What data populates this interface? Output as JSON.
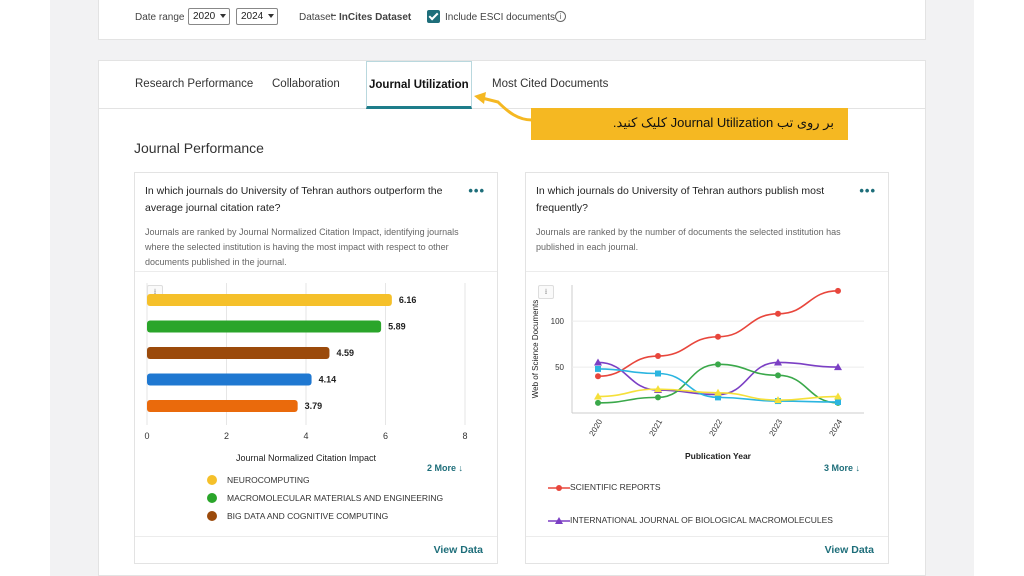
{
  "filters": {
    "date_range_label": "Date range",
    "from_year": "2020",
    "to_year": "2024",
    "dataset_label": "Dataset:",
    "dataset_value": "InCites Dataset",
    "esci_label": "Include ESCI documents"
  },
  "tabs": [
    {
      "label": "Research Performance"
    },
    {
      "label": "Collaboration"
    },
    {
      "label": "Journal Utilization"
    },
    {
      "label": "Most Cited Documents"
    }
  ],
  "callout": {
    "text": "بر روی تب Journal Utilization کلیک کنید."
  },
  "section_title": "Journal Performance",
  "left_panel": {
    "question": "In which journals do University of Tehran authors outperform the average journal citation rate?",
    "description": "Journals are ranked by Journal Normalized Citation Impact, identifying journals where the selected institution is having the most impact with respect to other documents published in the journal.",
    "more_label": "2 More ↓",
    "view_data": "View Data"
  },
  "right_panel": {
    "question": "In which journals do University of Tehran authors publish most frequently?",
    "description": "Journals are ranked by the number of documents the selected institution has published in each journal.",
    "more_label": "3 More ↓",
    "view_data": "View Data"
  },
  "chart_data": [
    {
      "type": "bar",
      "orientation": "horizontal",
      "categories": [
        "NEUROCOMPUTING",
        "MACROMOLECULAR MATERIALS AND ENGINEERING",
        "BIG DATA AND COGNITIVE COMPUTING",
        "",
        ""
      ],
      "values": [
        6.16,
        5.89,
        4.59,
        4.14,
        3.79
      ],
      "value_labels": [
        "6.16",
        "5.89",
        "4.59",
        "4.14",
        "3.79"
      ],
      "colors": [
        "#f5c02a",
        "#2aa52a",
        "#9b4a0b",
        "#1f78d1",
        "#ea6a0c"
      ],
      "xlabel": "Journal Normalized Citation Impact",
      "xlim": [
        0,
        8
      ],
      "xticks": [
        "0",
        "2",
        "4",
        "6",
        "8"
      ],
      "legend": [
        {
          "name": "NEUROCOMPUTING",
          "color": "#f5c02a"
        },
        {
          "name": "MACROMOLECULAR MATERIALS AND ENGINEERING",
          "color": "#2aa52a"
        },
        {
          "name": "BIG DATA AND COGNITIVE COMPUTING",
          "color": "#9b4a0b"
        }
      ],
      "grid": true
    },
    {
      "type": "line",
      "x": [
        "2020",
        "2021",
        "2022",
        "2023",
        "2024"
      ],
      "xlabel": "Publication Year",
      "ylabel": "Web of Science Documents",
      "ylim": [
        0,
        135
      ],
      "yticks": [
        "50",
        "100"
      ],
      "series": [
        {
          "name": "SCIENTIFIC REPORTS",
          "color": "#e8463c",
          "marker": "circle",
          "values": [
            40,
            62,
            83,
            108,
            133
          ]
        },
        {
          "name": "INTERNATIONAL JOURNAL OF BIOLOGICAL MACROMOLECULES",
          "color": "#7b3fc4",
          "marker": "triangle",
          "values": [
            55,
            25,
            20,
            55,
            50
          ]
        },
        {
          "color": "#3aa84a",
          "marker": "circle",
          "values": [
            11,
            17,
            53,
            41,
            11
          ]
        },
        {
          "color": "#2bb5e0",
          "marker": "square",
          "values": [
            48,
            43,
            17,
            13,
            12
          ]
        },
        {
          "color": "#f5e03a",
          "marker": "triangle",
          "values": [
            18,
            26,
            22,
            14,
            18
          ]
        }
      ],
      "legend_visible": [
        "SCIENTIFIC REPORTS",
        "INTERNATIONAL JOURNAL OF BIOLOGICAL MACROMOLECULES"
      ],
      "grid": true
    }
  ]
}
